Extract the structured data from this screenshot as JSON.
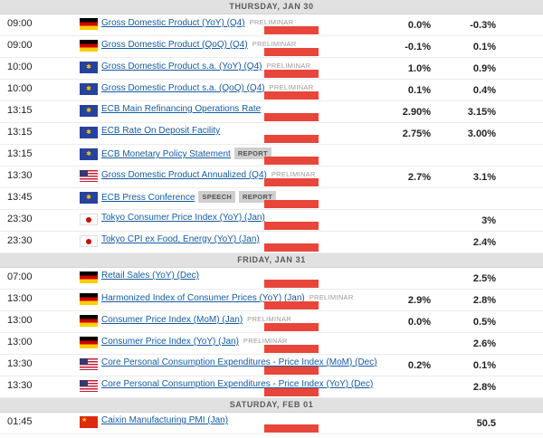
{
  "colors": {
    "importance_high": "#e8463a",
    "link": "#155a9e",
    "header_bg": "#e1e1e1",
    "badge_bg": "#cfcfcf"
  },
  "icons": {
    "flag_germany": "flag-germany-icon",
    "flag_eurozone": "flag-eurozone-icon",
    "flag_united_states": "flag-united-states-icon",
    "flag_japan": "flag-japan-icon",
    "flag_china": "flag-china-icon",
    "eurozone_glyph": "✱",
    "china_glyph": "★"
  },
  "calendar": {
    "sections": [
      {
        "date_header": "THURSDAY, JAN 30",
        "events": [
          {
            "time": "09:00",
            "country": "germany",
            "title": "Gross Domestic Product (YoY) (Q4)",
            "qualifier": "PRELIMINAR",
            "badges": [],
            "importance": "high",
            "forecast": "0.0%",
            "previous": "-0.3%"
          },
          {
            "time": "09:00",
            "country": "germany",
            "title": "Gross Domestic Product (QoQ) (Q4)",
            "qualifier": "PRELIMINAR",
            "badges": [],
            "importance": "high",
            "forecast": "-0.1%",
            "previous": "0.1%"
          },
          {
            "time": "10:00",
            "country": "eurozone",
            "title": "Gross Domestic Product s.a. (YoY) (Q4)",
            "qualifier": "PRELIMINAR",
            "badges": [],
            "importance": "high",
            "forecast": "1.0%",
            "previous": "0.9%"
          },
          {
            "time": "10:00",
            "country": "eurozone",
            "title": "Gross Domestic Product s.a. (QoQ) (Q4)",
            "qualifier": "PRELIMINAR",
            "badges": [],
            "importance": "high",
            "forecast": "0.1%",
            "previous": "0.4%"
          },
          {
            "time": "13:15",
            "country": "eurozone",
            "title": "ECB Main Refinancing Operations Rate",
            "qualifier": "",
            "badges": [],
            "importance": "high",
            "forecast": "2.90%",
            "previous": "3.15%"
          },
          {
            "time": "13:15",
            "country": "eurozone",
            "title": "ECB Rate On Deposit Facility",
            "qualifier": "",
            "badges": [],
            "importance": "high",
            "forecast": "2.75%",
            "previous": "3.00%"
          },
          {
            "time": "13:15",
            "country": "eurozone",
            "title": "ECB Monetary Policy Statement",
            "qualifier": "",
            "badges": [
              "REPORT"
            ],
            "importance": "high",
            "forecast": "",
            "previous": ""
          },
          {
            "time": "13:30",
            "country": "united-states",
            "title": "Gross Domestic Product Annualized (Q4)",
            "qualifier": "PRELIMINAR",
            "badges": [],
            "importance": "high",
            "forecast": "2.7%",
            "previous": "3.1%"
          },
          {
            "time": "13:45",
            "country": "eurozone",
            "title": "ECB Press Conference",
            "qualifier": "",
            "badges": [
              "SPEECH",
              "REPORT"
            ],
            "importance": "high",
            "forecast": "",
            "previous": ""
          },
          {
            "time": "23:30",
            "country": "japan",
            "title": "Tokyo Consumer Price Index (YoY) (Jan)",
            "qualifier": "",
            "badges": [],
            "importance": "high",
            "forecast": "",
            "previous": "3%"
          },
          {
            "time": "23:30",
            "country": "japan",
            "title": "Tokyo CPI ex Food, Energy (YoY) (Jan)",
            "qualifier": "",
            "badges": [],
            "importance": "high",
            "forecast": "",
            "previous": "2.4%"
          }
        ]
      },
      {
        "date_header": "FRIDAY, JAN 31",
        "events": [
          {
            "time": "07:00",
            "country": "germany",
            "title": "Retail Sales (YoY) (Dec)",
            "qualifier": "",
            "badges": [],
            "importance": "high",
            "forecast": "",
            "previous": "2.5%"
          },
          {
            "time": "13:00",
            "country": "germany",
            "title": "Harmonized Index of Consumer Prices (YoY) (Jan)",
            "qualifier": "PRELIMINAR",
            "badges": [],
            "importance": "high",
            "forecast": "2.9%",
            "previous": "2.8%"
          },
          {
            "time": "13:00",
            "country": "germany",
            "title": "Consumer Price Index (MoM) (Jan)",
            "qualifier": "PRELIMINAR",
            "badges": [],
            "importance": "high",
            "forecast": "0.0%",
            "previous": "0.5%"
          },
          {
            "time": "13:00",
            "country": "germany",
            "title": "Consumer Price Index (YoY) (Jan)",
            "qualifier": "PRELIMINAR",
            "badges": [],
            "importance": "high",
            "forecast": "",
            "previous": "2.6%"
          },
          {
            "time": "13:30",
            "country": "united-states",
            "title": "Core Personal Consumption Expenditures - Price Index (MoM) (Dec)",
            "qualifier": "",
            "badges": [],
            "importance": "high",
            "forecast": "0.2%",
            "previous": "0.1%"
          },
          {
            "time": "13:30",
            "country": "united-states",
            "title": "Core Personal Consumption Expenditures - Price Index (YoY) (Dec)",
            "qualifier": "",
            "badges": [],
            "importance": "high",
            "forecast": "",
            "previous": "2.8%"
          }
        ]
      },
      {
        "date_header": "SATURDAY, FEB 01",
        "events": [
          {
            "time": "01:45",
            "country": "china",
            "title": "Caixin Manufacturing PMI (Jan)",
            "qualifier": "",
            "badges": [],
            "importance": "high",
            "forecast": "",
            "previous": "50.5"
          }
        ]
      }
    ]
  }
}
